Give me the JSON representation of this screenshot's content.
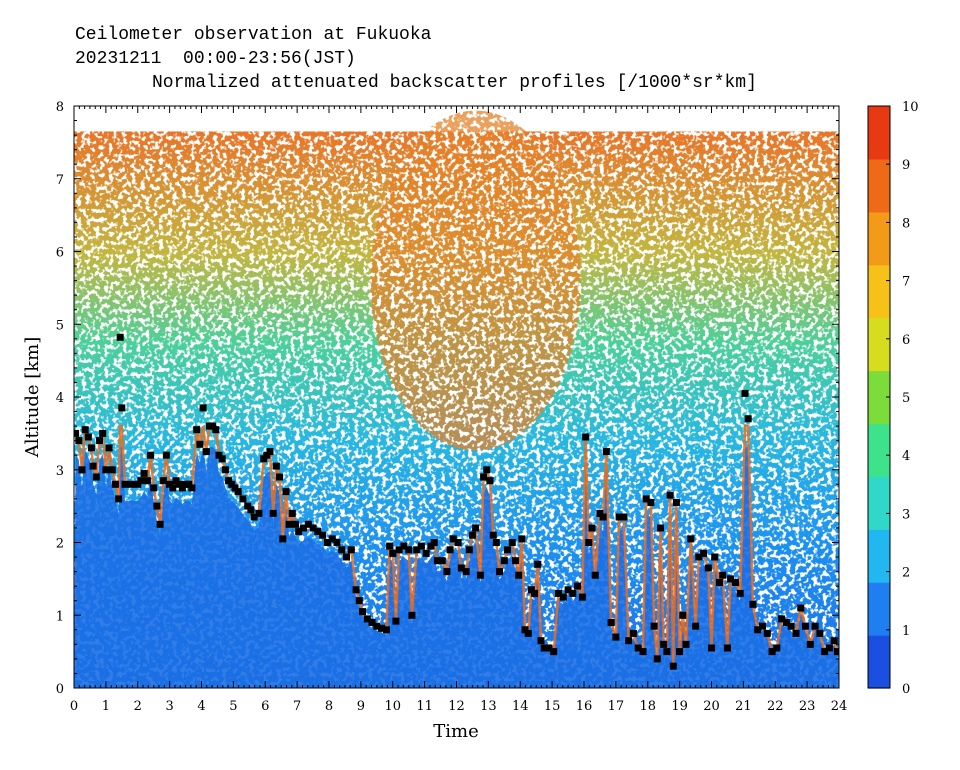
{
  "header": {
    "line1": "Ceilometer observation at Fukuoka",
    "line2": "20231211  00:00-23:56(JST)",
    "line3": "Normalized attenuated backscatter profiles [/1000*sr*km]"
  },
  "chart_data": {
    "type": "heatmap",
    "title": "Normalized attenuated backscatter profiles [/1000*sr*km]",
    "xlabel": "Time",
    "ylabel": "Altitude [km]",
    "xlim": [
      0,
      24
    ],
    "ylim": [
      0,
      8
    ],
    "x_ticks": [
      "0",
      "1",
      "2",
      "3",
      "4",
      "5",
      "6",
      "7",
      "8",
      "9",
      "10",
      "11",
      "12",
      "13",
      "14",
      "15",
      "16",
      "17",
      "18",
      "19",
      "20",
      "21",
      "22",
      "23",
      "24"
    ],
    "y_ticks": [
      "0",
      "1",
      "2",
      "3",
      "4",
      "5",
      "6",
      "7",
      "8"
    ],
    "colorbar": {
      "min": 0,
      "max": 10,
      "ticks": [
        "0",
        "1",
        "2",
        "3",
        "4",
        "5",
        "6",
        "7",
        "8",
        "9",
        "10"
      ],
      "colors": [
        "#1a4fe0",
        "#1f7ff0",
        "#22b7f0",
        "#2fd8c8",
        "#3ee28a",
        "#7bdc3a",
        "#d7dc1e",
        "#f6c21a",
        "#f39a18",
        "#ee6a16",
        "#e83a12"
      ]
    },
    "data_top_km": 7.65,
    "cloud_base_series": {
      "name": "",
      "points": [
        [
          0.05,
          3.5
        ],
        [
          0.15,
          3.4
        ],
        [
          0.25,
          3.0
        ],
        [
          0.35,
          3.55
        ],
        [
          0.45,
          3.45
        ],
        [
          0.55,
          3.3
        ],
        [
          0.6,
          3.05
        ],
        [
          0.7,
          2.9
        ],
        [
          0.8,
          3.4
        ],
        [
          0.9,
          3.5
        ],
        [
          1.0,
          3.0
        ],
        [
          1.1,
          3.3
        ],
        [
          1.2,
          3.0
        ],
        [
          1.3,
          2.8
        ],
        [
          1.4,
          2.6
        ],
        [
          1.45,
          4.82
        ],
        [
          1.5,
          3.85
        ],
        [
          1.6,
          2.8
        ],
        [
          1.8,
          2.8
        ],
        [
          2.0,
          2.8
        ],
        [
          2.1,
          2.85
        ],
        [
          2.2,
          2.95
        ],
        [
          2.3,
          2.85
        ],
        [
          2.4,
          3.2
        ],
        [
          2.5,
          2.75
        ],
        [
          2.6,
          2.5
        ],
        [
          2.7,
          2.25
        ],
        [
          2.8,
          2.85
        ],
        [
          2.9,
          3.2
        ],
        [
          3.0,
          2.8
        ],
        [
          3.1,
          2.75
        ],
        [
          3.2,
          2.85
        ],
        [
          3.3,
          2.8
        ],
        [
          3.4,
          2.75
        ],
        [
          3.5,
          2.8
        ],
        [
          3.6,
          2.8
        ],
        [
          3.7,
          2.75
        ],
        [
          3.85,
          3.55
        ],
        [
          3.95,
          3.35
        ],
        [
          4.05,
          3.85
        ],
        [
          4.15,
          3.25
        ],
        [
          4.25,
          3.6
        ],
        [
          4.35,
          3.6
        ],
        [
          4.45,
          3.55
        ],
        [
          4.55,
          3.2
        ],
        [
          4.65,
          3.15
        ],
        [
          4.75,
          3.0
        ],
        [
          4.85,
          2.85
        ],
        [
          4.95,
          2.8
        ],
        [
          5.05,
          2.75
        ],
        [
          5.15,
          2.7
        ],
        [
          5.3,
          2.6
        ],
        [
          5.45,
          2.5
        ],
        [
          5.55,
          2.45
        ],
        [
          5.65,
          2.35
        ],
        [
          5.8,
          2.4
        ],
        [
          5.95,
          3.15
        ],
        [
          6.05,
          3.2
        ],
        [
          6.15,
          3.25
        ],
        [
          6.25,
          2.4
        ],
        [
          6.35,
          3.05
        ],
        [
          6.45,
          2.9
        ],
        [
          6.55,
          2.05
        ],
        [
          6.65,
          2.7
        ],
        [
          6.75,
          2.25
        ],
        [
          6.85,
          2.4
        ],
        [
          6.95,
          2.25
        ],
        [
          7.05,
          2.15
        ],
        [
          7.2,
          2.2
        ],
        [
          7.35,
          2.25
        ],
        [
          7.5,
          2.2
        ],
        [
          7.65,
          2.15
        ],
        [
          7.8,
          2.1
        ],
        [
          7.95,
          2.0
        ],
        [
          8.1,
          2.05
        ],
        [
          8.25,
          2.0
        ],
        [
          8.4,
          1.9
        ],
        [
          8.55,
          1.8
        ],
        [
          8.7,
          1.9
        ],
        [
          8.85,
          1.35
        ],
        [
          8.95,
          1.2
        ],
        [
          9.05,
          1.05
        ],
        [
          9.2,
          0.95
        ],
        [
          9.35,
          0.9
        ],
        [
          9.5,
          0.85
        ],
        [
          9.65,
          0.82
        ],
        [
          9.8,
          0.8
        ],
        [
          9.9,
          1.95
        ],
        [
          10.0,
          1.85
        ],
        [
          10.1,
          0.92
        ],
        [
          10.2,
          1.9
        ],
        [
          10.35,
          1.95
        ],
        [
          10.5,
          1.9
        ],
        [
          10.6,
          1.0
        ],
        [
          10.75,
          1.9
        ],
        [
          10.9,
          1.95
        ],
        [
          11.05,
          1.85
        ],
        [
          11.2,
          1.95
        ],
        [
          11.3,
          2.0
        ],
        [
          11.4,
          1.75
        ],
        [
          11.55,
          1.75
        ],
        [
          11.7,
          1.6
        ],
        [
          11.8,
          1.9
        ],
        [
          11.9,
          2.05
        ],
        [
          12.05,
          2.0
        ],
        [
          12.15,
          1.65
        ],
        [
          12.3,
          1.6
        ],
        [
          12.4,
          1.9
        ],
        [
          12.5,
          2.1
        ],
        [
          12.6,
          2.2
        ],
        [
          12.75,
          1.55
        ],
        [
          12.85,
          2.9
        ],
        [
          12.95,
          3.0
        ],
        [
          13.05,
          2.85
        ],
        [
          13.15,
          2.1
        ],
        [
          13.25,
          2.0
        ],
        [
          13.35,
          1.6
        ],
        [
          13.5,
          1.75
        ],
        [
          13.6,
          1.9
        ],
        [
          13.75,
          2.0
        ],
        [
          13.85,
          1.75
        ],
        [
          13.95,
          1.55
        ],
        [
          14.05,
          2.05
        ],
        [
          14.15,
          0.8
        ],
        [
          14.25,
          0.75
        ],
        [
          14.35,
          1.35
        ],
        [
          14.45,
          1.3
        ],
        [
          14.55,
          1.7
        ],
        [
          14.65,
          0.65
        ],
        [
          14.75,
          0.55
        ],
        [
          14.9,
          0.55
        ],
        [
          15.05,
          0.5
        ],
        [
          15.2,
          1.3
        ],
        [
          15.35,
          1.25
        ],
        [
          15.5,
          1.35
        ],
        [
          15.65,
          1.3
        ],
        [
          15.8,
          1.4
        ],
        [
          15.95,
          1.25
        ],
        [
          16.05,
          3.45
        ],
        [
          16.15,
          2.0
        ],
        [
          16.25,
          2.2
        ],
        [
          16.35,
          1.55
        ],
        [
          16.5,
          2.4
        ],
        [
          16.6,
          2.35
        ],
        [
          16.7,
          3.25
        ],
        [
          16.85,
          0.9
        ],
        [
          17.0,
          0.7
        ],
        [
          17.1,
          2.35
        ],
        [
          17.25,
          2.35
        ],
        [
          17.4,
          0.65
        ],
        [
          17.55,
          0.75
        ],
        [
          17.7,
          0.55
        ],
        [
          17.85,
          0.5
        ],
        [
          17.95,
          2.6
        ],
        [
          18.1,
          2.55
        ],
        [
          18.2,
          0.85
        ],
        [
          18.3,
          0.4
        ],
        [
          18.4,
          2.2
        ],
        [
          18.5,
          0.6
        ],
        [
          18.6,
          0.5
        ],
        [
          18.7,
          2.65
        ],
        [
          18.8,
          0.3
        ],
        [
          18.9,
          2.55
        ],
        [
          19.0,
          0.5
        ],
        [
          19.1,
          1.0
        ],
        [
          19.2,
          0.6
        ],
        [
          19.35,
          2.05
        ],
        [
          19.5,
          0.85
        ],
        [
          19.6,
          1.8
        ],
        [
          19.75,
          1.85
        ],
        [
          19.9,
          1.65
        ],
        [
          20.0,
          0.55
        ],
        [
          20.1,
          1.8
        ],
        [
          20.25,
          1.45
        ],
        [
          20.35,
          1.55
        ],
        [
          20.5,
          0.55
        ],
        [
          20.6,
          1.5
        ],
        [
          20.75,
          1.45
        ],
        [
          20.9,
          1.3
        ],
        [
          21.05,
          4.05
        ],
        [
          21.15,
          3.7
        ],
        [
          21.3,
          1.15
        ],
        [
          21.45,
          0.8
        ],
        [
          21.6,
          0.85
        ],
        [
          21.75,
          0.75
        ],
        [
          21.9,
          0.5
        ],
        [
          22.05,
          0.55
        ],
        [
          22.2,
          0.95
        ],
        [
          22.35,
          0.9
        ],
        [
          22.5,
          0.85
        ],
        [
          22.65,
          0.75
        ],
        [
          22.8,
          1.1
        ],
        [
          22.95,
          0.85
        ],
        [
          23.1,
          0.6
        ],
        [
          23.25,
          0.85
        ],
        [
          23.4,
          0.75
        ],
        [
          23.55,
          0.5
        ],
        [
          23.7,
          0.55
        ],
        [
          23.85,
          0.65
        ],
        [
          23.95,
          0.5
        ]
      ]
    }
  }
}
